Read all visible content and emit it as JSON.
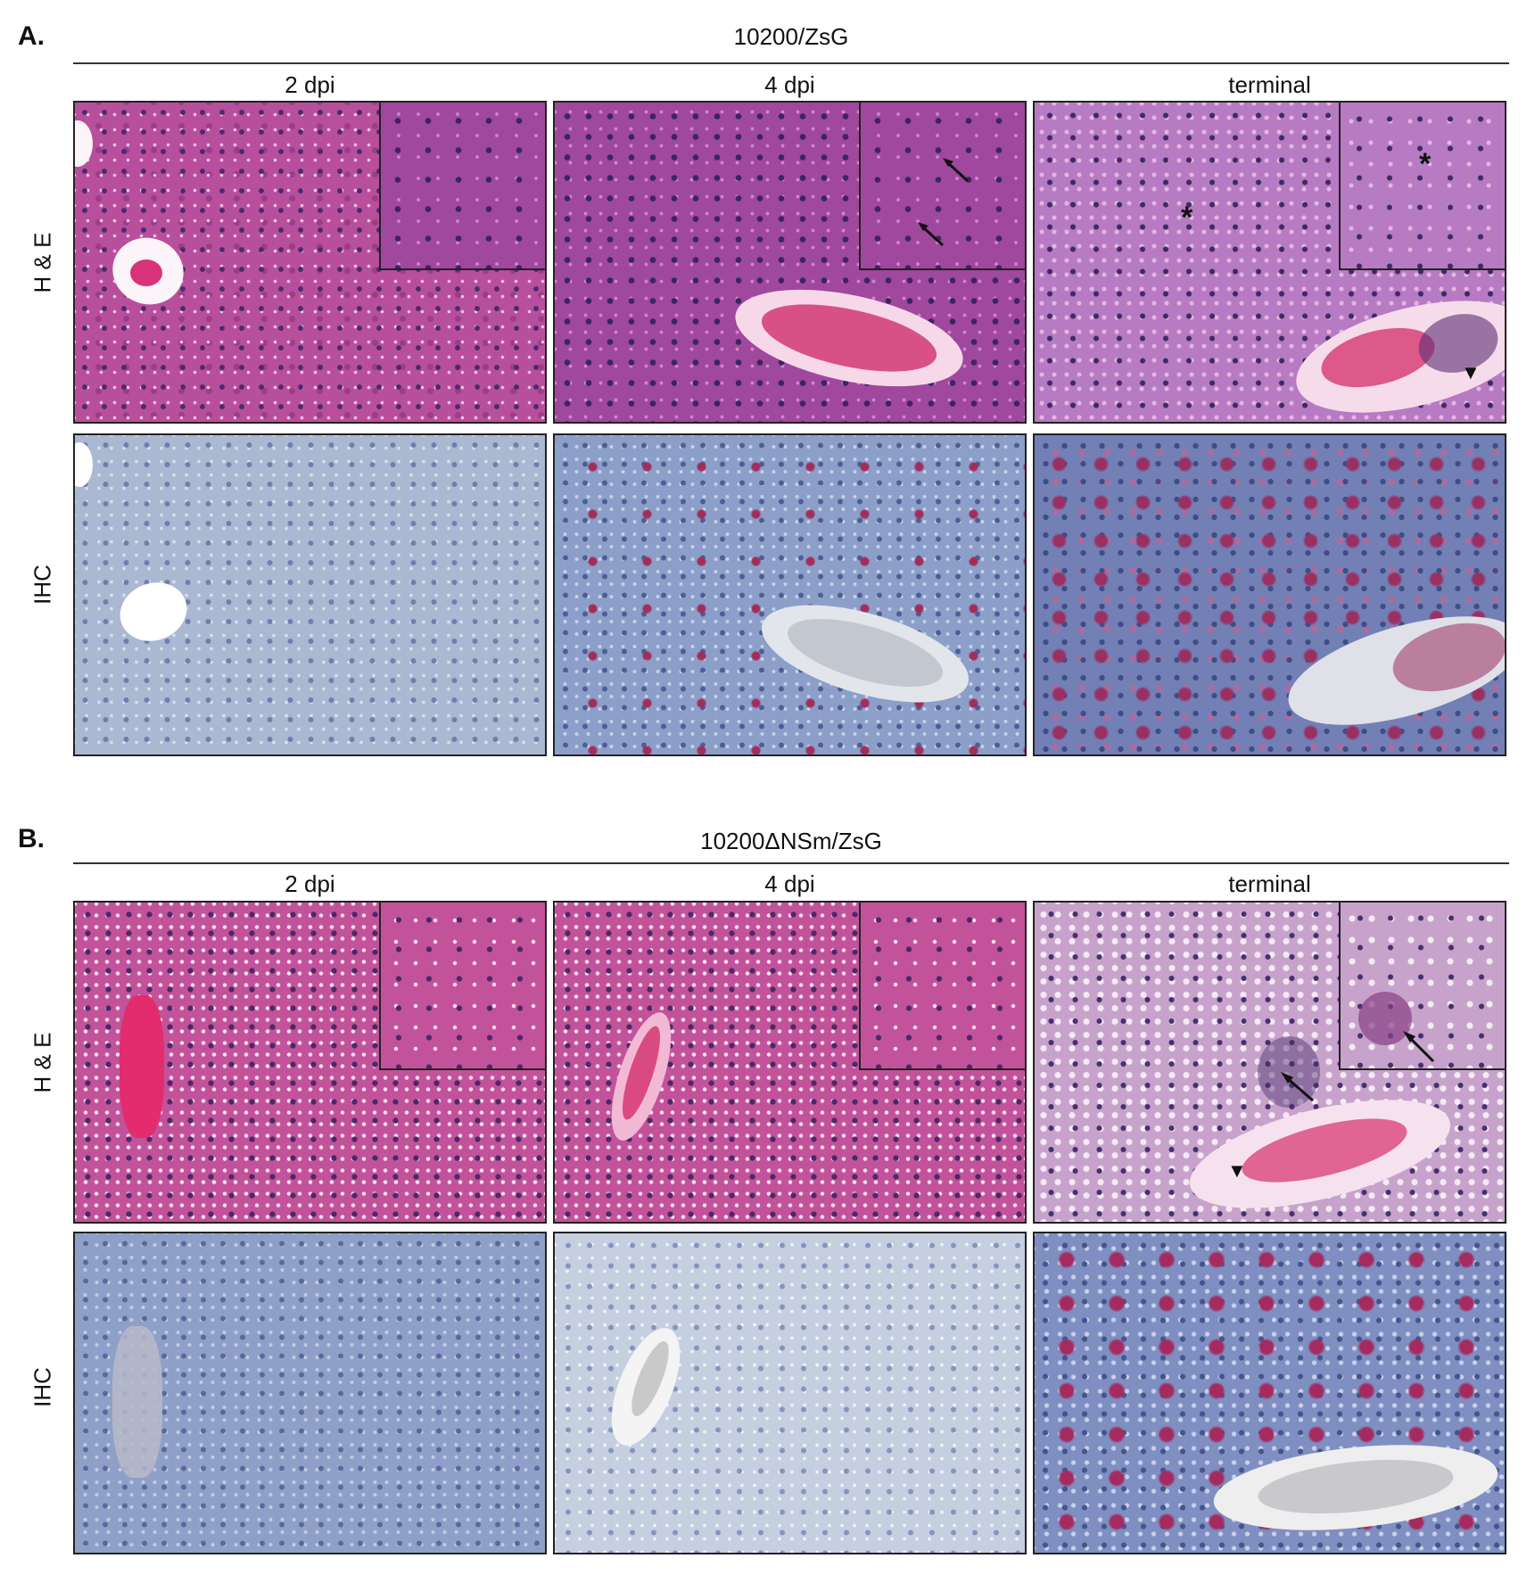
{
  "panels": [
    {
      "letter": "A.",
      "title": "10200/ZsG",
      "columns": [
        "2 dpi",
        "4 dpi",
        "terminal"
      ],
      "rows": [
        "H & E",
        "IHC"
      ]
    },
    {
      "letter": "B.",
      "title": "10200ΔNSm/ZsG",
      "columns": [
        "2 dpi",
        "4 dpi",
        "terminal"
      ],
      "rows": [
        "H & E",
        "IHC"
      ]
    }
  ],
  "colors": {
    "he_stain": "#b84f9c",
    "ihc_background": "#aab8d2",
    "ihc_positive": "#a12d5a",
    "frame": "#222222"
  }
}
